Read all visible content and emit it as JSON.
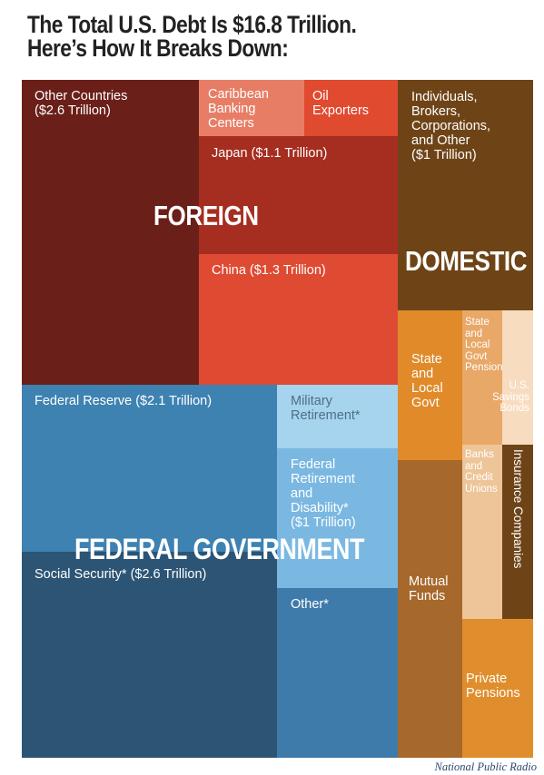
{
  "title": {
    "line1": "The Total U.S. Debt Is $16.8 Trillion.",
    "line2": "Here’s How It Breaks Down:"
  },
  "groups": {
    "foreign": "FOREIGN",
    "domestic": "DOMESTIC",
    "federal": "FEDERAL GOVERNMENT"
  },
  "cells": {
    "other_countries": "Other Countries\n($2.6 Trillion)",
    "caribbean": "Caribbean\nBanking\nCenters",
    "oil": "Oil\nExporters",
    "japan": "Japan ($1.1 Trillion)",
    "china": "China ($1.3 Trillion)",
    "individuals": "Individuals,\nBrokers,\nCorporations,\nand Other\n($1 Trillion)",
    "state_local": "State\nand\nLocal\nGovt",
    "state_pensions": "State\nand\nLocal\nGovt\nPensions",
    "savings_bonds": "U.S.\nSavings\nBonds",
    "banks": "Banks\nand\nCredit\nUnions",
    "insurance": "Insurance Companies",
    "mutual_funds": "Mutual\nFunds",
    "private_pensions": "Private\nPensions",
    "federal_reserve": "Federal Reserve ($2.1 Trillion)",
    "military": "Military\nRetirement*",
    "federal_retirement": "Federal\nRetirement\nand\nDisability*\n($1 Trillion)",
    "social_security": "Social Security* ($2.6 Trillion)",
    "other": "Other*"
  },
  "colors": {
    "other_countries": "#6b1f19",
    "caribbean": "#e87d66",
    "oil": "#e04a2f",
    "japan": "#a52e20",
    "china": "#de4a32",
    "individuals": "#6e4417",
    "state_local": "#e08a2a",
    "state_pensions": "#e8a868",
    "savings_bonds": "#f8dcc0",
    "banks": "#eec598",
    "insurance": "#6e4417",
    "mutual_funds": "#a7682b",
    "private_pensions": "#e08e2d",
    "federal_reserve": "#3e82b2",
    "military": "#a6d3ee",
    "federal_retirement": "#7ab8e2",
    "social_security": "#2c5474",
    "other": "#3e7bab"
  },
  "credit": "National Public Radio"
}
